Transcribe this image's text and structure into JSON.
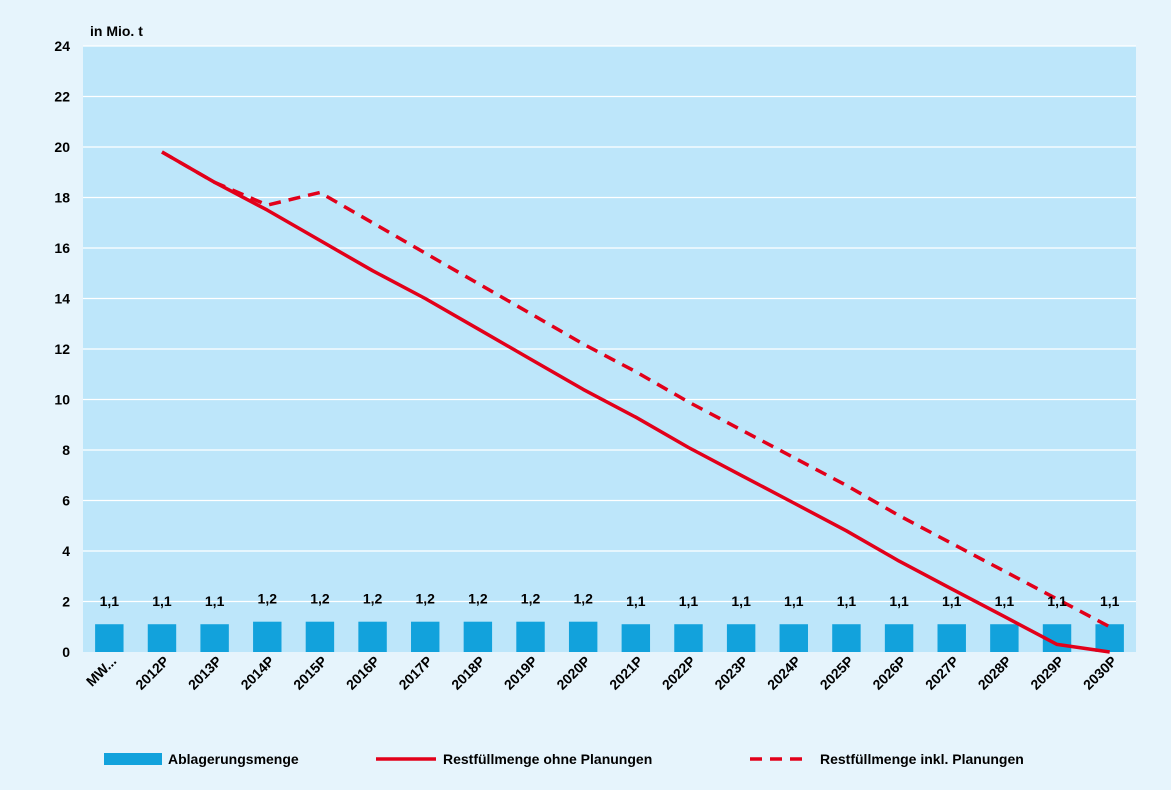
{
  "chart_data": {
    "type": "bar",
    "unit_label": "in Mio. t",
    "categories": [
      "MW...",
      "2012P",
      "2013P",
      "2014P",
      "2015P",
      "2016P",
      "2017P",
      "2018P",
      "2019P",
      "2020P",
      "2021P",
      "2022P",
      "2023P",
      "2024P",
      "2025P",
      "2026P",
      "2027P",
      "2028P",
      "2029P",
      "2030P"
    ],
    "ylim": [
      0,
      24
    ],
    "yticks": [
      0,
      2,
      4,
      6,
      8,
      10,
      12,
      14,
      16,
      18,
      20,
      22,
      24
    ],
    "grid": true,
    "legend_position": "bottom",
    "series": [
      {
        "name": "Ablagerungsmenge",
        "kind": "bar",
        "color": "#12a2dc",
        "values": [
          1.1,
          1.1,
          1.1,
          1.2,
          1.2,
          1.2,
          1.2,
          1.2,
          1.2,
          1.2,
          1.1,
          1.1,
          1.1,
          1.1,
          1.1,
          1.1,
          1.1,
          1.1,
          1.1,
          1.1
        ],
        "labels": [
          "1,1",
          "1,1",
          "1,1",
          "1,2",
          "1,2",
          "1,2",
          "1,2",
          "1,2",
          "1,2",
          "1,2",
          "1,1",
          "1,1",
          "1,1",
          "1,1",
          "1,1",
          "1,1",
          "1,1",
          "1,1",
          "1,1",
          "1,1"
        ]
      },
      {
        "name": "Restfüllmenge ohne Planungen",
        "kind": "line",
        "style": "solid",
        "color": "#e2001a",
        "values": [
          null,
          19.8,
          18.6,
          17.5,
          16.3,
          15.1,
          14.0,
          12.8,
          11.6,
          10.4,
          9.3,
          8.1,
          7.0,
          5.9,
          4.8,
          3.6,
          2.5,
          1.4,
          0.3,
          0.0
        ]
      },
      {
        "name": "Restfüllmenge inkl. Planungen",
        "kind": "line",
        "style": "dashed",
        "color": "#e2001a",
        "values": [
          null,
          19.8,
          18.6,
          17.7,
          18.2,
          17.0,
          15.8,
          14.6,
          13.4,
          12.2,
          11.1,
          9.9,
          8.8,
          7.7,
          6.6,
          5.4,
          4.3,
          3.2,
          2.1,
          1.0
        ]
      }
    ]
  }
}
